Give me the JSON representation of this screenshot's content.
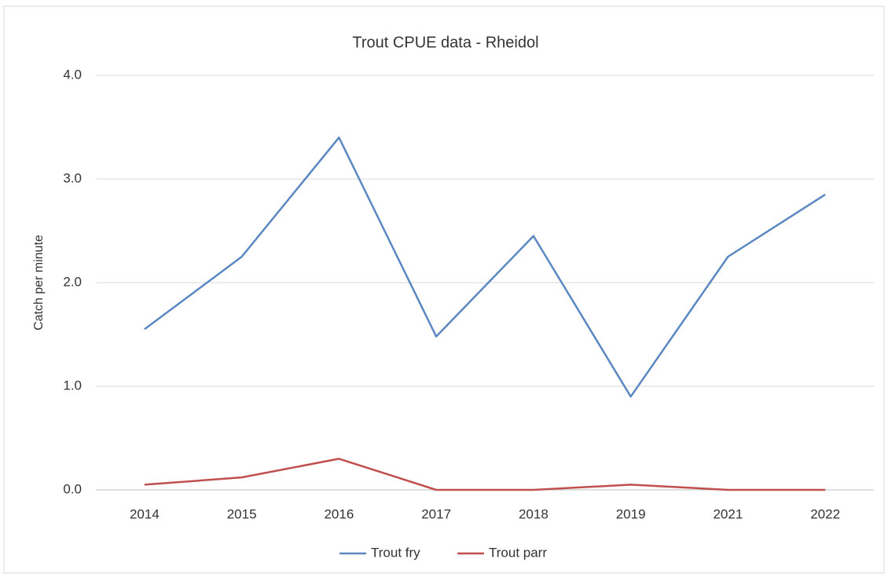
{
  "chart_data": {
    "type": "line",
    "title": "Trout CPUE data - Rheidol",
    "y_label": "Catch per minute",
    "categories": [
      "2014",
      "2015",
      "2016",
      "2017",
      "2018",
      "2019",
      "2021",
      "2022"
    ],
    "series": [
      {
        "name": "Trout fry",
        "color": "#5b87c2",
        "values": [
          1.55,
          2.25,
          3.4,
          1.48,
          2.45,
          0.9,
          2.25,
          2.85
        ]
      },
      {
        "name": "Trout parr",
        "color": "#c0504d",
        "values": [
          0.05,
          0.12,
          0.3,
          0.0,
          0.0,
          0.05,
          0.0,
          0.0
        ]
      }
    ],
    "ylim": [
      0,
      4
    ],
    "yticks": [
      {
        "value": 0,
        "label": "0.0"
      },
      {
        "value": 1,
        "label": "1.0"
      },
      {
        "value": 2,
        "label": "2.0"
      },
      {
        "value": 3,
        "label": "3.0"
      },
      {
        "value": 4,
        "label": "4.0"
      }
    ],
    "grid": true,
    "legend": "bottom"
  }
}
